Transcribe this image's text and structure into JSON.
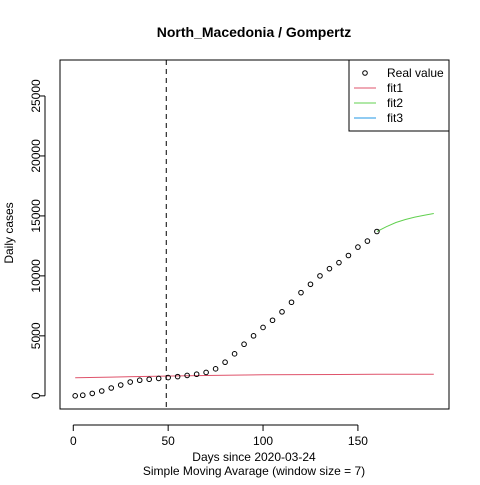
{
  "chart_data": {
    "type": "scatter",
    "title": "North_Macedonia / Gompertz",
    "xlabel": "Days since 2020-03-24",
    "xlabel_sub": "Simple Moving Avarage (window size = 7)",
    "ylabel": "Daily cases",
    "xlim": [
      -7,
      198
    ],
    "ylim": [
      -1100,
      28000
    ],
    "x_ticks": [
      0,
      50,
      100,
      150
    ],
    "y_ticks": [
      0,
      5000,
      10000,
      15000,
      20000,
      25000
    ],
    "vline_x": 49,
    "legend": {
      "placement": "top-right",
      "entries": [
        {
          "label": "Real value",
          "kind": "point",
          "color": "#000000"
        },
        {
          "label": "fit1",
          "kind": "line",
          "color": "#DF536B"
        },
        {
          "label": "fit2",
          "kind": "line",
          "color": "#61D04F"
        },
        {
          "label": "fit3",
          "kind": "line",
          "color": "#2297E6"
        }
      ]
    },
    "series": [
      {
        "name": "Real value",
        "kind": "points",
        "color": "#000000",
        "x": [
          1,
          5,
          10,
          15,
          20,
          25,
          30,
          35,
          40,
          45,
          50,
          55,
          60,
          65,
          70,
          75,
          80,
          85,
          90,
          95,
          100,
          105,
          110,
          115,
          120,
          125,
          130,
          135,
          140,
          145,
          150,
          155,
          160
        ],
        "y": [
          0,
          50,
          200,
          400,
          650,
          900,
          1150,
          1300,
          1380,
          1450,
          1520,
          1600,
          1700,
          1800,
          1950,
          2250,
          2800,
          3500,
          4300,
          5000,
          5700,
          6300,
          7000,
          7800,
          8600,
          9300,
          10000,
          10600,
          11100,
          11700,
          12400,
          12900,
          13700
        ]
      },
      {
        "name": "fit1",
        "kind": "line",
        "color": "#DF536B",
        "x": [
          1,
          20,
          40,
          60,
          80,
          100,
          120,
          140,
          160,
          190
        ],
        "y": [
          1500,
          1560,
          1620,
          1680,
          1720,
          1750,
          1770,
          1780,
          1790,
          1800
        ]
      },
      {
        "name": "fit2",
        "kind": "line",
        "color": "#61D04F",
        "x": [
          160,
          165,
          170,
          175,
          180,
          185,
          190
        ],
        "y": [
          13700,
          14100,
          14450,
          14700,
          14900,
          15050,
          15200
        ]
      }
    ]
  }
}
